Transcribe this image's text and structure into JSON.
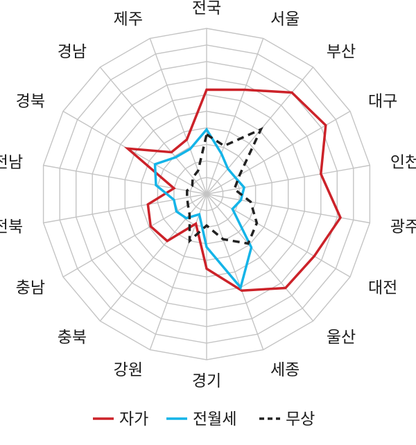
{
  "chart_data": {
    "type": "radar",
    "axes": [
      "전국",
      "서울",
      "부산",
      "대구",
      "인천",
      "광주",
      "대전",
      "울산",
      "세종",
      "경기",
      "강원",
      "충북",
      "충남",
      "전북",
      "전남",
      "경북",
      "경남",
      "제주"
    ],
    "rmax": 10,
    "grid_levels": 10,
    "series": [
      {
        "name": "자가",
        "color": "#cc2229",
        "dash": "solid",
        "values": [
          6.3,
          6.7,
          8.0,
          8.3,
          7.0,
          8.2,
          7.5,
          7.4,
          6.2,
          4.5,
          1.9,
          3.7,
          3.9,
          3.6,
          2.0,
          5.5,
          3.3,
          3.5
        ]
      },
      {
        "name": "전월세",
        "color": "#14b4e8",
        "dash": "solid",
        "values": [
          3.9,
          2.6,
          2.0,
          2.0,
          2.3,
          2.1,
          1.8,
          4.2,
          6.0,
          3.2,
          1.3,
          1.9,
          2.1,
          2.0,
          3.1,
          3.6,
          2.9,
          2.9
        ]
      },
      {
        "name": "무상",
        "color": "#222222",
        "dash": "dashed",
        "values": [
          3.6,
          3.1,
          5.1,
          2.3,
          1.7,
          2.7,
          3.5,
          3.9,
          2.9,
          1.9,
          3.0,
          1.6,
          1.3,
          1.2,
          1.2,
          1.0,
          1.3,
          1.5
        ]
      }
    ],
    "legend_position": "bottom"
  }
}
